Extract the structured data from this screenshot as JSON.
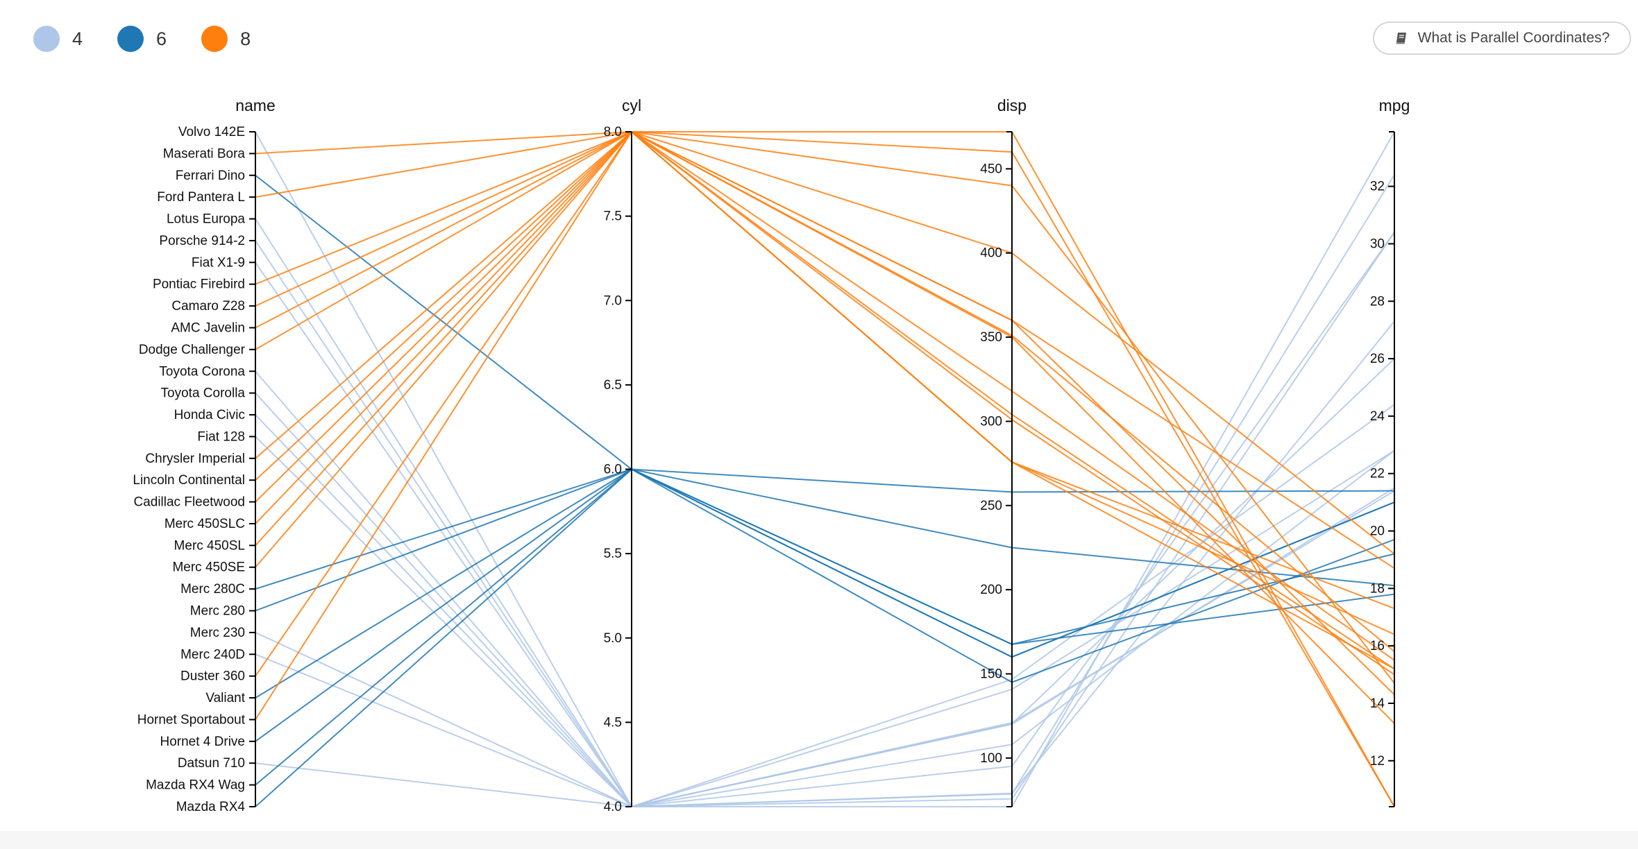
{
  "legend": {
    "items": [
      {
        "label": "4",
        "color": "#aec7e8"
      },
      {
        "label": "6",
        "color": "#1f77b4"
      },
      {
        "label": "8",
        "color": "#ff7f0e"
      }
    ]
  },
  "help_button": {
    "label": "What is Parallel Coordinates?",
    "icon": "book-icon"
  },
  "chart_data": {
    "type": "parallel-coordinates",
    "dimensions": [
      "name",
      "cyl",
      "disp",
      "mpg"
    ],
    "color_by": "cyl",
    "colors": {
      "4": "#aec7e8",
      "6": "#1f77b4",
      "8": "#ff7f0e"
    },
    "axes": {
      "cyl": {
        "range": [
          4,
          8
        ],
        "ticks": [
          "4.0",
          "4.5",
          "5.0",
          "5.5",
          "6.0",
          "6.5",
          "7.0",
          "7.5",
          "8.0"
        ]
      },
      "disp": {
        "range": [
          71.1,
          472
        ],
        "ticks": [
          "100",
          "150",
          "200",
          "250",
          "300",
          "350",
          "400",
          "450"
        ]
      },
      "mpg": {
        "range": [
          10.4,
          33.9
        ],
        "ticks": [
          "12",
          "14",
          "16",
          "18",
          "20",
          "22",
          "24",
          "26",
          "28",
          "30",
          "32"
        ]
      }
    },
    "rows": [
      {
        "name": "Mazda RX4",
        "cyl": 6,
        "disp": 160,
        "mpg": 21.0
      },
      {
        "name": "Mazda RX4 Wag",
        "cyl": 6,
        "disp": 160,
        "mpg": 21.0
      },
      {
        "name": "Datsun 710",
        "cyl": 4,
        "disp": 108,
        "mpg": 22.8
      },
      {
        "name": "Hornet 4 Drive",
        "cyl": 6,
        "disp": 258,
        "mpg": 21.4
      },
      {
        "name": "Hornet Sportabout",
        "cyl": 8,
        "disp": 360,
        "mpg": 18.7
      },
      {
        "name": "Valiant",
        "cyl": 6,
        "disp": 225,
        "mpg": 18.1
      },
      {
        "name": "Duster 360",
        "cyl": 8,
        "disp": 360,
        "mpg": 14.3
      },
      {
        "name": "Merc 240D",
        "cyl": 4,
        "disp": 146.7,
        "mpg": 24.4
      },
      {
        "name": "Merc 230",
        "cyl": 4,
        "disp": 140.8,
        "mpg": 22.8
      },
      {
        "name": "Merc 280",
        "cyl": 6,
        "disp": 167.6,
        "mpg": 19.2
      },
      {
        "name": "Merc 280C",
        "cyl": 6,
        "disp": 167.6,
        "mpg": 17.8
      },
      {
        "name": "Merc 450SE",
        "cyl": 8,
        "disp": 275.8,
        "mpg": 16.4
      },
      {
        "name": "Merc 450SL",
        "cyl": 8,
        "disp": 275.8,
        "mpg": 17.3
      },
      {
        "name": "Merc 450SLC",
        "cyl": 8,
        "disp": 275.8,
        "mpg": 15.2
      },
      {
        "name": "Cadillac Fleetwood",
        "cyl": 8,
        "disp": 472,
        "mpg": 10.4
      },
      {
        "name": "Lincoln Continental",
        "cyl": 8,
        "disp": 460,
        "mpg": 10.4
      },
      {
        "name": "Chrysler Imperial",
        "cyl": 8,
        "disp": 440,
        "mpg": 14.7
      },
      {
        "name": "Fiat 128",
        "cyl": 4,
        "disp": 78.7,
        "mpg": 32.4
      },
      {
        "name": "Honda Civic",
        "cyl": 4,
        "disp": 75.7,
        "mpg": 30.4
      },
      {
        "name": "Toyota Corolla",
        "cyl": 4,
        "disp": 71.1,
        "mpg": 33.9
      },
      {
        "name": "Toyota Corona",
        "cyl": 4,
        "disp": 120.1,
        "mpg": 21.5
      },
      {
        "name": "Dodge Challenger",
        "cyl": 8,
        "disp": 318,
        "mpg": 15.5
      },
      {
        "name": "AMC Javelin",
        "cyl": 8,
        "disp": 304,
        "mpg": 15.2
      },
      {
        "name": "Camaro Z28",
        "cyl": 8,
        "disp": 350,
        "mpg": 13.3
      },
      {
        "name": "Pontiac Firebird",
        "cyl": 8,
        "disp": 400,
        "mpg": 19.2
      },
      {
        "name": "Fiat X1-9",
        "cyl": 4,
        "disp": 79,
        "mpg": 27.3
      },
      {
        "name": "Porsche 914-2",
        "cyl": 4,
        "disp": 120.3,
        "mpg": 26.0
      },
      {
        "name": "Lotus Europa",
        "cyl": 4,
        "disp": 95.1,
        "mpg": 30.4
      },
      {
        "name": "Ford Pantera L",
        "cyl": 8,
        "disp": 351,
        "mpg": 15.8
      },
      {
        "name": "Ferrari Dino",
        "cyl": 6,
        "disp": 145,
        "mpg": 19.7
      },
      {
        "name": "Maserati Bora",
        "cyl": 8,
        "disp": 301,
        "mpg": 15.0
      },
      {
        "name": "Volvo 142E",
        "cyl": 4,
        "disp": 121,
        "mpg": 21.4
      }
    ]
  }
}
